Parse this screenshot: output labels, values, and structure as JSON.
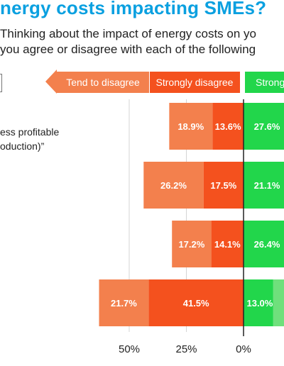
{
  "title": "nergy costs impacting SMEs?",
  "subtitle_line1": "Thinking about the impact of energy costs on yo",
  "subtitle_line2": "you agree or disagree with each of the following",
  "legend": {
    "tend_to_disagree": "Tend to disagree",
    "strongly_disagree": "Strongly disagree",
    "strongly_agree_partial": "Strong"
  },
  "questions": [
    {
      "line1": "ess profitable",
      "line2": "oduction)”"
    }
  ],
  "colors": {
    "title": "#0aa0e0",
    "tend_to_disagree": "#f3804d",
    "strongly_disagree": "#f4511e",
    "strongly_agree": "#22d64b",
    "tend_to_agree": "#6fe07c"
  },
  "chart_data": {
    "type": "bar",
    "orientation": "horizontal diverging",
    "xlabel": "",
    "ylabel": "",
    "x_tick_labels": [
      "50%",
      "25%",
      "0%"
    ],
    "series": [
      {
        "name": "Tend to disagree",
        "values": [
          18.9,
          26.2,
          17.2,
          21.7
        ]
      },
      {
        "name": "Strongly disagree",
        "values": [
          13.6,
          17.5,
          14.1,
          41.5
        ]
      },
      {
        "name": "Strongly agree",
        "values": [
          27.6,
          21.1,
          26.4,
          13.0
        ]
      }
    ],
    "data_labels": {
      "Tend to disagree": [
        "18.9%",
        "26.2%",
        "17.2%",
        "21.7%"
      ],
      "Strongly disagree": [
        "13.6%",
        "17.5%",
        "14.1%",
        "41.5%"
      ],
      "Strongly agree": [
        "27.6%",
        "21.1%",
        "26.4%",
        "13.0%"
      ]
    },
    "grid": true
  }
}
